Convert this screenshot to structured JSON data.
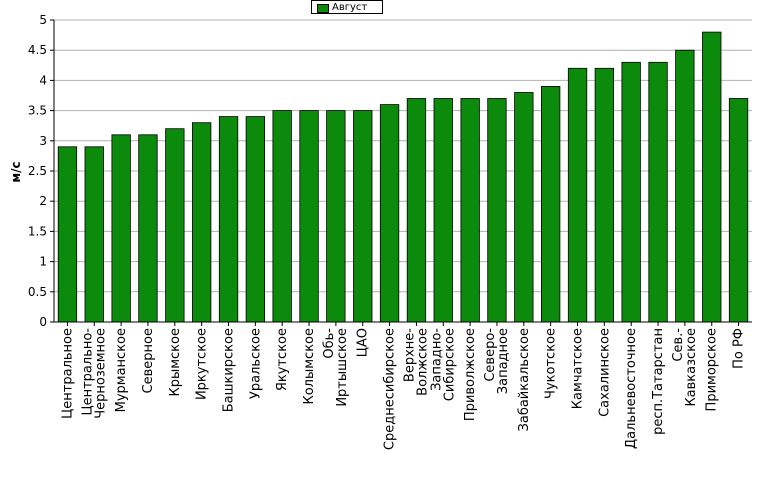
{
  "chart_data": {
    "type": "bar",
    "title": "",
    "xlabel": "",
    "ylabel": "м/с",
    "ylim": [
      0,
      5
    ],
    "yticks": [
      "0",
      "0.5",
      "1",
      "1.5",
      "2",
      "2.5",
      "3",
      "3.5",
      "4",
      "4.5",
      "5"
    ],
    "grid": true,
    "legend_position": "top-center",
    "bar_color": "#0b8a0b",
    "categories": [
      "Центральное",
      "Центрально-Черноземное",
      "Мурманское",
      "Северное",
      "Крымское",
      "Иркутское",
      "Башкирское",
      "Уральское",
      "Якутское",
      "Колымское",
      "Обь-Иртышское",
      "ЦАО",
      "Среднесибирское",
      "Верхне-Волжское",
      "Западно-Сибирское",
      "Приволжское",
      "Северо-Западное",
      "Забайкальское",
      "Чукотское",
      "Камчатское",
      "Сахалинское",
      "Дальневосточное",
      "респ.Татарстан",
      "Сев.-Кавказское",
      "Приморское",
      "По РФ"
    ],
    "series": [
      {
        "name": "Август",
        "values": [
          2.9,
          2.9,
          3.1,
          3.1,
          3.2,
          3.3,
          3.4,
          3.4,
          3.5,
          3.5,
          3.5,
          3.5,
          3.6,
          3.7,
          3.7,
          3.7,
          3.7,
          3.8,
          3.9,
          4.2,
          4.2,
          4.3,
          4.3,
          4.5,
          4.8,
          3.7
        ]
      }
    ]
  }
}
